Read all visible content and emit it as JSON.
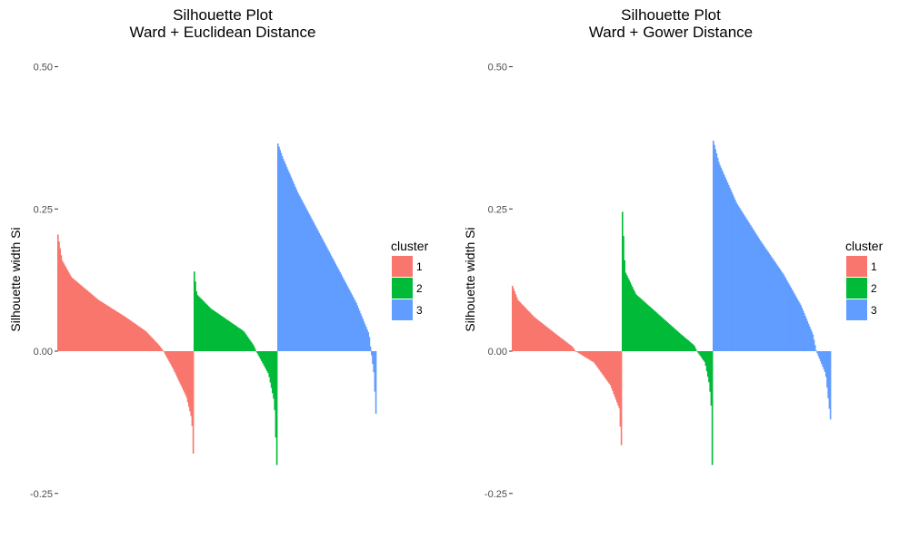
{
  "chart_data": [
    {
      "type": "bar",
      "title": "Silhouette Plot",
      "subtitle": "Ward + Euclidean Distance",
      "xlabel": "",
      "ylabel": "Silhouette width Si",
      "ylim": [
        -0.3,
        0.5
      ],
      "yticks": [
        -0.25,
        0.0,
        0.25,
        0.5
      ],
      "ytick_labels": [
        "-0.25",
        "0.00",
        "0.25",
        "0.50"
      ],
      "grid": false,
      "legend": {
        "title": "cluster",
        "position": "right",
        "entries": [
          "1",
          "2",
          "3"
        ]
      },
      "colors": {
        "1": "#F8766D",
        "2": "#00BA38",
        "3": "#619CFF"
      },
      "series": [
        {
          "name": "1",
          "profile": [
            [
              0,
              0.205
            ],
            [
              0.03,
              0.16
            ],
            [
              0.1,
              0.13
            ],
            [
              0.3,
              0.09
            ],
            [
              0.5,
              0.06
            ],
            [
              0.65,
              0.035
            ],
            [
              0.75,
              0.01
            ],
            [
              0.78,
              0.0
            ],
            [
              0.85,
              -0.03
            ],
            [
              0.95,
              -0.08
            ],
            [
              0.99,
              -0.12
            ],
            [
              1,
              -0.18
            ]
          ]
        },
        {
          "name": "2",
          "profile": [
            [
              0,
              0.14
            ],
            [
              0.03,
              0.1
            ],
            [
              0.2,
              0.075
            ],
            [
              0.4,
              0.055
            ],
            [
              0.6,
              0.035
            ],
            [
              0.72,
              0.01
            ],
            [
              0.75,
              0.0
            ],
            [
              0.9,
              -0.04
            ],
            [
              0.97,
              -0.09
            ],
            [
              1,
              -0.2
            ]
          ]
        },
        {
          "name": "3",
          "profile": [
            [
              0,
              0.365
            ],
            [
              0.05,
              0.34
            ],
            [
              0.2,
              0.28
            ],
            [
              0.4,
              0.215
            ],
            [
              0.6,
              0.15
            ],
            [
              0.8,
              0.085
            ],
            [
              0.93,
              0.03
            ],
            [
              0.95,
              0.0
            ],
            [
              0.98,
              -0.04
            ],
            [
              1,
              -0.11
            ]
          ]
        }
      ]
    },
    {
      "type": "bar",
      "title": "Silhouette Plot",
      "subtitle": "Ward + Gower Distance",
      "xlabel": "",
      "ylabel": "Silhouette width Si",
      "ylim": [
        -0.3,
        0.5
      ],
      "yticks": [
        -0.25,
        0.0,
        0.25,
        0.5
      ],
      "ytick_labels": [
        "-0.25",
        "0.00",
        "0.25",
        "0.50"
      ],
      "grid": false,
      "legend": {
        "title": "cluster",
        "position": "right",
        "entries": [
          "1",
          "2",
          "3"
        ]
      },
      "colors": {
        "1": "#F8766D",
        "2": "#00BA38",
        "3": "#619CFF"
      },
      "series": [
        {
          "name": "1",
          "profile": [
            [
              0,
              0.115
            ],
            [
              0.05,
              0.09
            ],
            [
              0.2,
              0.06
            ],
            [
              0.4,
              0.03
            ],
            [
              0.55,
              0.008
            ],
            [
              0.58,
              0.0
            ],
            [
              0.75,
              -0.02
            ],
            [
              0.9,
              -0.06
            ],
            [
              0.98,
              -0.1
            ],
            [
              1,
              -0.165
            ]
          ]
        },
        {
          "name": "2",
          "profile": [
            [
              0,
              0.245
            ],
            [
              0.03,
              0.14
            ],
            [
              0.15,
              0.1
            ],
            [
              0.4,
              0.065
            ],
            [
              0.65,
              0.03
            ],
            [
              0.8,
              0.01
            ],
            [
              0.83,
              0.0
            ],
            [
              0.92,
              -0.02
            ],
            [
              0.97,
              -0.06
            ],
            [
              0.99,
              -0.1
            ],
            [
              1,
              -0.2
            ]
          ]
        },
        {
          "name": "3",
          "profile": [
            [
              0,
              0.37
            ],
            [
              0.05,
              0.33
            ],
            [
              0.2,
              0.26
            ],
            [
              0.4,
              0.195
            ],
            [
              0.6,
              0.135
            ],
            [
              0.75,
              0.08
            ],
            [
              0.85,
              0.03
            ],
            [
              0.88,
              0.0
            ],
            [
              0.96,
              -0.04
            ],
            [
              1,
              -0.12
            ]
          ]
        }
      ]
    }
  ]
}
